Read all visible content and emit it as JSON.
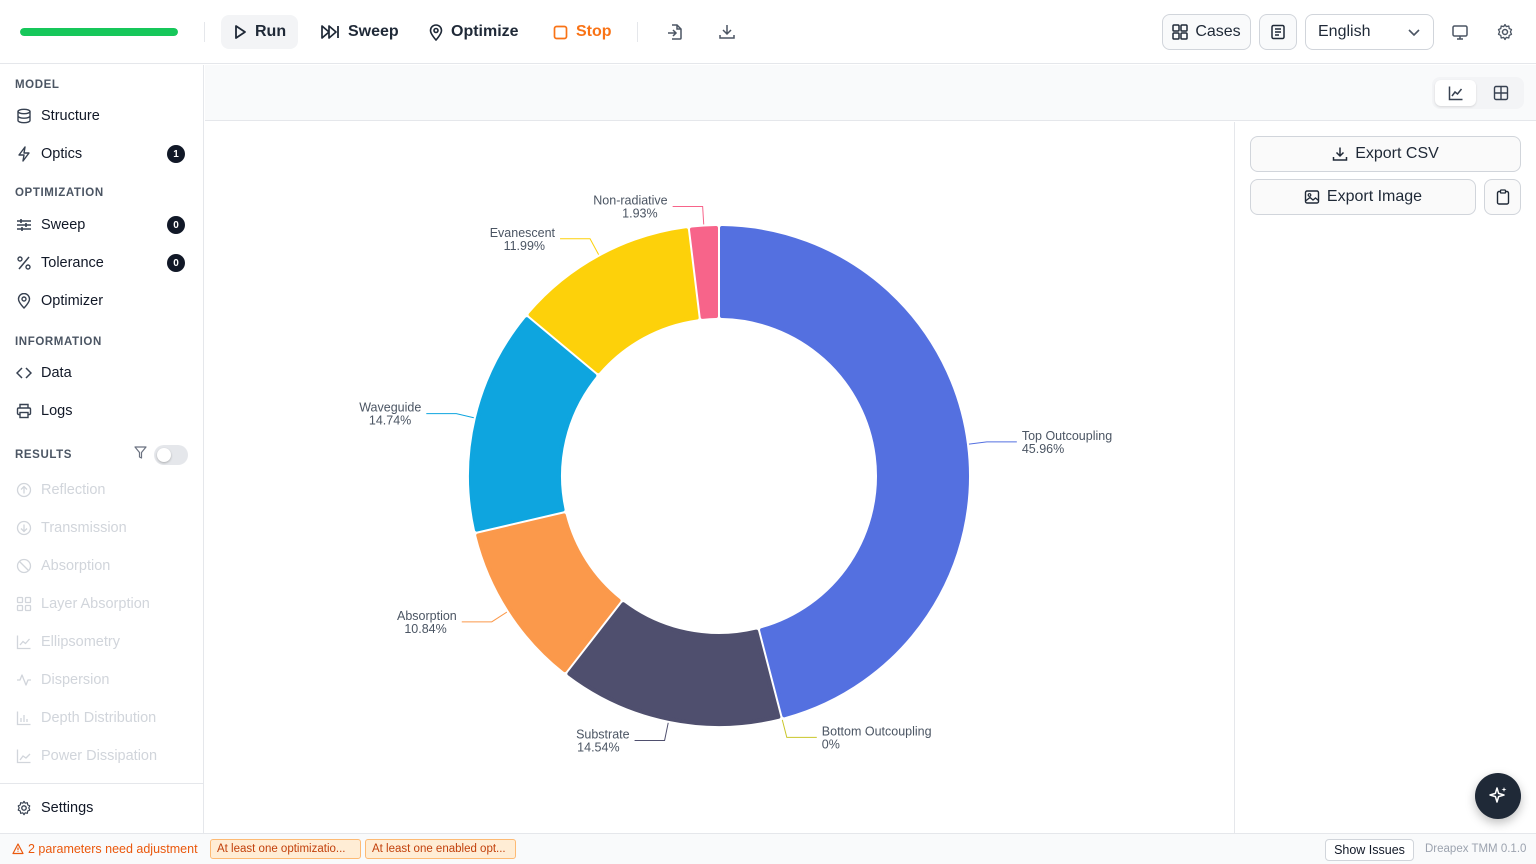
{
  "toolbar": {
    "progress": 1.0,
    "run_label": "Run",
    "sweep_label": "Sweep",
    "optimize_label": "Optimize",
    "stop_label": "Stop",
    "cases_label": "Cases",
    "language": "English"
  },
  "sidebar": {
    "model_header": "MODEL",
    "model_items": [
      {
        "label": "Structure",
        "icon": "database-icon"
      },
      {
        "label": "Optics",
        "icon": "lightning-icon",
        "badge": "1"
      }
    ],
    "optimization_header": "OPTIMIZATION",
    "optimization_items": [
      {
        "label": "Sweep",
        "icon": "sliders-icon",
        "badge": "0"
      },
      {
        "label": "Tolerance",
        "icon": "percent-icon",
        "badge": "0"
      },
      {
        "label": "Optimizer",
        "icon": "map-pin-icon"
      }
    ],
    "information_header": "INFORMATION",
    "information_items": [
      {
        "label": "Data",
        "icon": "code-icon"
      },
      {
        "label": "Logs",
        "icon": "printer-icon"
      }
    ],
    "results_header": "RESULTS",
    "results_items": [
      {
        "label": "Reflection",
        "icon": "arrow-up-circle-icon"
      },
      {
        "label": "Transmission",
        "icon": "arrow-down-circle-icon"
      },
      {
        "label": "Absorption",
        "icon": "ban-icon"
      },
      {
        "label": "Layer Absorption",
        "icon": "grid-icon"
      },
      {
        "label": "Ellipsometry",
        "icon": "line-chart-icon"
      },
      {
        "label": "Dispersion",
        "icon": "activity-icon"
      },
      {
        "label": "Depth Distribution",
        "icon": "bar-chart-icon"
      },
      {
        "label": "Power Dissipation",
        "icon": "area-chart-icon"
      }
    ],
    "settings_label": "Settings"
  },
  "panel": {
    "export_csv": "Export CSV",
    "export_image": "Export Image"
  },
  "chart_data": {
    "type": "pie",
    "donut": true,
    "categories": [
      "Top Outcoupling",
      "Bottom Outcoupling",
      "Substrate",
      "Absorption",
      "Waveguide",
      "Evanescent",
      "Non-radiative"
    ],
    "values": [
      45.96,
      0,
      14.54,
      10.84,
      14.74,
      11.99,
      1.93
    ],
    "value_labels": [
      "45.96%",
      "0%",
      "14.54%",
      "10.84%",
      "14.74%",
      "11.99%",
      "1.93%"
    ],
    "colors": [
      "#5470e0",
      "#c9c62a",
      "#4f4f6e",
      "#fb994b",
      "#0ea5df",
      "#fdd10a",
      "#f7648a"
    ]
  },
  "status": {
    "warning": "2 parameters need adjustment",
    "chips": [
      "At least one optimizatio...",
      "At least one enabled opt..."
    ],
    "show_issues": "Show Issues",
    "version": "Dreapex TMM 0.1.0"
  }
}
